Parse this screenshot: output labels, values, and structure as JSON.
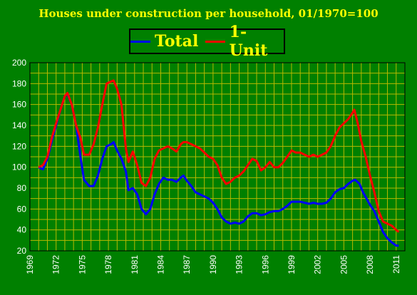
{
  "chart_data": {
    "type": "line",
    "title": "Houses under construction per household, 01/1970=100",
    "xlabel": "",
    "ylabel": "",
    "ylim": [
      20,
      200
    ],
    "yticks": [
      "20",
      "40",
      "60",
      "80",
      "100",
      "120",
      "140",
      "160",
      "180",
      "200"
    ],
    "xticks": [
      "1969",
      "1972",
      "1975",
      "1978",
      "1981",
      "1984",
      "1987",
      "1990",
      "1993",
      "1996",
      "1999",
      "2002",
      "2005",
      "2008",
      "2011"
    ],
    "xlim": [
      1969,
      2012
    ],
    "grid": true,
    "legend_position": "top-center",
    "series": [
      {
        "name": "Total",
        "color": "#0000ff",
        "points": [
          [
            1970.0,
            100
          ],
          [
            1970.5,
            98
          ],
          [
            1971.0,
            108
          ],
          [
            1971.5,
            125
          ],
          [
            1972.0,
            140
          ],
          [
            1972.5,
            155
          ],
          [
            1973.0,
            168
          ],
          [
            1973.3,
            170
          ],
          [
            1973.8,
            160
          ],
          [
            1974.3,
            140
          ],
          [
            1974.8,
            110
          ],
          [
            1975.2,
            88
          ],
          [
            1975.8,
            82
          ],
          [
            1976.3,
            82
          ],
          [
            1976.8,
            92
          ],
          [
            1977.3,
            108
          ],
          [
            1977.8,
            120
          ],
          [
            1978.3,
            122
          ],
          [
            1978.6,
            124
          ],
          [
            1979.0,
            116
          ],
          [
            1979.5,
            108
          ],
          [
            1980.0,
            96
          ],
          [
            1980.3,
            78
          ],
          [
            1980.8,
            80
          ],
          [
            1981.3,
            74
          ],
          [
            1981.8,
            60
          ],
          [
            1982.3,
            55
          ],
          [
            1982.8,
            60
          ],
          [
            1983.3,
            74
          ],
          [
            1983.8,
            84
          ],
          [
            1984.3,
            90
          ],
          [
            1984.8,
            88
          ],
          [
            1985.3,
            88
          ],
          [
            1985.8,
            86
          ],
          [
            1986.3,
            90
          ],
          [
            1986.6,
            92
          ],
          [
            1987.0,
            87
          ],
          [
            1987.5,
            82
          ],
          [
            1988.0,
            76
          ],
          [
            1988.5,
            74
          ],
          [
            1989.0,
            72
          ],
          [
            1989.5,
            70
          ],
          [
            1990.0,
            66
          ],
          [
            1990.5,
            60
          ],
          [
            1991.0,
            52
          ],
          [
            1991.5,
            48
          ],
          [
            1992.0,
            46
          ],
          [
            1992.5,
            47
          ],
          [
            1993.0,
            46
          ],
          [
            1993.5,
            48
          ],
          [
            1994.0,
            53
          ],
          [
            1994.5,
            56
          ],
          [
            1995.0,
            56
          ],
          [
            1995.5,
            54
          ],
          [
            1996.0,
            55
          ],
          [
            1996.5,
            57
          ],
          [
            1997.0,
            58
          ],
          [
            1997.5,
            58
          ],
          [
            1998.0,
            60
          ],
          [
            1998.5,
            63
          ],
          [
            1999.0,
            67
          ],
          [
            1999.5,
            67
          ],
          [
            2000.0,
            67
          ],
          [
            2000.5,
            66
          ],
          [
            2001.0,
            65
          ],
          [
            2001.5,
            66
          ],
          [
            2002.0,
            65
          ],
          [
            2002.5,
            65
          ],
          [
            2003.0,
            66
          ],
          [
            2003.5,
            70
          ],
          [
            2004.0,
            76
          ],
          [
            2004.5,
            79
          ],
          [
            2005.0,
            80
          ],
          [
            2005.5,
            84
          ],
          [
            2006.0,
            87
          ],
          [
            2006.3,
            88
          ],
          [
            2006.8,
            84
          ],
          [
            2007.2,
            76
          ],
          [
            2007.6,
            70
          ],
          [
            2008.0,
            64
          ],
          [
            2008.5,
            58
          ],
          [
            2009.0,
            48
          ],
          [
            2009.5,
            38
          ],
          [
            2010.0,
            32
          ],
          [
            2010.5,
            28
          ],
          [
            2011.0,
            25
          ],
          [
            2011.3,
            25
          ]
        ]
      },
      {
        "name": "1-Unit",
        "color": "#ff0000",
        "points": [
          [
            1970.0,
            100
          ],
          [
            1970.5,
            102
          ],
          [
            1971.0,
            110
          ],
          [
            1971.5,
            128
          ],
          [
            1972.0,
            142
          ],
          [
            1972.5,
            155
          ],
          [
            1973.0,
            168
          ],
          [
            1973.3,
            171
          ],
          [
            1973.8,
            160
          ],
          [
            1974.3,
            140
          ],
          [
            1974.8,
            128
          ],
          [
            1975.2,
            112
          ],
          [
            1975.8,
            112
          ],
          [
            1976.3,
            122
          ],
          [
            1976.8,
            138
          ],
          [
            1977.3,
            160
          ],
          [
            1977.8,
            180
          ],
          [
            1978.3,
            182
          ],
          [
            1978.6,
            183
          ],
          [
            1979.0,
            175
          ],
          [
            1979.5,
            160
          ],
          [
            1980.0,
            118
          ],
          [
            1980.3,
            105
          ],
          [
            1980.8,
            115
          ],
          [
            1981.3,
            102
          ],
          [
            1981.8,
            85
          ],
          [
            1982.3,
            82
          ],
          [
            1982.8,
            90
          ],
          [
            1983.3,
            108
          ],
          [
            1983.8,
            116
          ],
          [
            1984.3,
            118
          ],
          [
            1984.8,
            120
          ],
          [
            1985.3,
            118
          ],
          [
            1985.8,
            115
          ],
          [
            1986.3,
            122
          ],
          [
            1986.6,
            124
          ],
          [
            1987.0,
            124
          ],
          [
            1987.5,
            122
          ],
          [
            1988.0,
            120
          ],
          [
            1988.5,
            118
          ],
          [
            1989.0,
            114
          ],
          [
            1989.5,
            110
          ],
          [
            1990.0,
            108
          ],
          [
            1990.5,
            102
          ],
          [
            1991.0,
            90
          ],
          [
            1991.5,
            84
          ],
          [
            1992.0,
            86
          ],
          [
            1992.5,
            90
          ],
          [
            1993.0,
            92
          ],
          [
            1993.5,
            96
          ],
          [
            1994.0,
            102
          ],
          [
            1994.5,
            108
          ],
          [
            1995.0,
            106
          ],
          [
            1995.5,
            97
          ],
          [
            1996.0,
            100
          ],
          [
            1996.5,
            105
          ],
          [
            1997.0,
            100
          ],
          [
            1997.5,
            100
          ],
          [
            1998.0,
            104
          ],
          [
            1998.5,
            110
          ],
          [
            1999.0,
            116
          ],
          [
            1999.5,
            114
          ],
          [
            2000.0,
            114
          ],
          [
            2000.5,
            112
          ],
          [
            2001.0,
            110
          ],
          [
            2001.5,
            112
          ],
          [
            2002.0,
            110
          ],
          [
            2002.5,
            112
          ],
          [
            2003.0,
            114
          ],
          [
            2003.5,
            120
          ],
          [
            2004.0,
            130
          ],
          [
            2004.5,
            138
          ],
          [
            2005.0,
            142
          ],
          [
            2005.5,
            146
          ],
          [
            2006.0,
            152
          ],
          [
            2006.2,
            155
          ],
          [
            2006.6,
            142
          ],
          [
            2007.0,
            125
          ],
          [
            2007.5,
            110
          ],
          [
            2008.0,
            92
          ],
          [
            2008.5,
            76
          ],
          [
            2009.0,
            58
          ],
          [
            2009.5,
            48
          ],
          [
            2010.0,
            46
          ],
          [
            2010.5,
            44
          ],
          [
            2011.0,
            40
          ],
          [
            2011.3,
            38
          ]
        ]
      }
    ]
  }
}
